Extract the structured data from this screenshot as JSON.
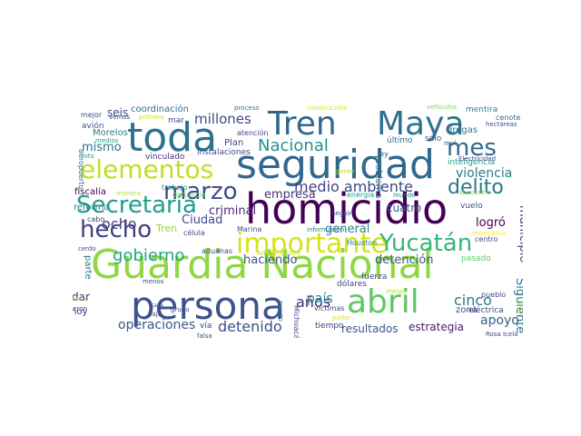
{
  "words": [
    {
      "text": "Guardia Nacional",
      "color": "#8fd744"
    },
    {
      "text": "persona",
      "color": "#3b528b"
    },
    {
      "text": "homicidio",
      "color": "#440154"
    },
    {
      "text": "seguridad",
      "color": "#31688e"
    },
    {
      "text": "Tren",
      "color": "#31688e"
    },
    {
      "text": "Maya",
      "color": "#2c728e"
    },
    {
      "text": "toda",
      "color": "#2c728e"
    },
    {
      "text": "abril",
      "color": "#5ec962"
    },
    {
      "text": "importante",
      "color": "#d8e219"
    },
    {
      "text": "elementos",
      "color": "#c2df23"
    },
    {
      "text": "Secretaría",
      "color": "#1f9e89"
    },
    {
      "text": "marzo",
      "color": "#3e4989"
    },
    {
      "text": "hecho",
      "color": "#433e85"
    },
    {
      "text": "Yucatán",
      "color": "#35b779"
    },
    {
      "text": "mes",
      "color": "#31688e"
    },
    {
      "text": "delito",
      "color": "#2a788e"
    },
    {
      "text": "Nacional",
      "color": "#21918c"
    },
    {
      "text": "millones",
      "color": "#3e4989"
    },
    {
      "text": "medio ambiente",
      "color": "#404688"
    },
    {
      "text": "gobierno",
      "color": "#20a486"
    },
    {
      "text": "ocho",
      "color": "#414487"
    },
    {
      "text": "operaciones",
      "color": "#38598c"
    },
    {
      "text": "detenido",
      "color": "#3b528b"
    },
    {
      "text": "apoyo",
      "color": "#34618d"
    },
    {
      "text": "años",
      "color": "#482677"
    },
    {
      "text": "país",
      "color": "#26828e"
    },
    {
      "text": "cinco",
      "color": "#2a788e"
    },
    {
      "text": "Siguiente",
      "color": "#2c728e"
    },
    {
      "text": "municipio",
      "color": "#3e4989"
    },
    {
      "text": "violencia",
      "color": "#287c8e"
    },
    {
      "text": "mismo",
      "color": "#2c728e"
    },
    {
      "text": "criminal",
      "color": "#482677"
    },
    {
      "text": "empresa",
      "color": "#46337e"
    },
    {
      "text": "haciendo",
      "color": "#3b528b"
    },
    {
      "text": "detención",
      "color": "#3b528b"
    },
    {
      "text": "resultados",
      "color": "#3b528b"
    },
    {
      "text": "estrategia",
      "color": "#481a6c"
    },
    {
      "text": "general",
      "color": "#26828e"
    },
    {
      "text": "cuatro",
      "color": "#38598c"
    },
    {
      "text": "logró",
      "color": "#440154"
    },
    {
      "text": "Ciudad",
      "color": "#3e4989"
    },
    {
      "text": "problema",
      "color": "#2c728e"
    },
    {
      "text": "seis",
      "color": "#3e4989"
    },
    {
      "text": "coordinación",
      "color": "#2c728e"
    },
    {
      "text": "reforma",
      "color": "#26828e"
    },
    {
      "text": "fiscalía",
      "color": "#440154"
    },
    {
      "text": "dar",
      "color": "#46337e"
    },
    {
      "text": "hoy",
      "color": "#482878"
    },
    {
      "text": "parte",
      "color": "#2a788e"
    },
    {
      "text": "Morelos",
      "color": "#2a788e"
    },
    {
      "text": "drogas",
      "color": "#2a788e"
    },
    {
      "text": "inteligencia",
      "color": "#1f9e89"
    },
    {
      "text": "mentira",
      "color": "#26828e"
    },
    {
      "text": "cenote",
      "color": "#31688e"
    },
    {
      "text": "vehículos",
      "color": "#7ad151"
    },
    {
      "text": "construcción",
      "color": "#dce319"
    },
    {
      "text": "proceso",
      "color": "#2a788e"
    },
    {
      "text": "aeropuerto",
      "color": "#31688e"
    },
    {
      "text": "mejor",
      "color": "#3e4989"
    },
    {
      "text": "avión",
      "color": "#3b528b"
    },
    {
      "text": "vemos",
      "color": "#404688"
    },
    {
      "text": "primera",
      "color": "#c0df25"
    },
    {
      "text": "mar",
      "color": "#3e4989"
    },
    {
      "text": "atención",
      "color": "#3e4989"
    },
    {
      "text": "Plan",
      "color": "#3e4989"
    },
    {
      "text": "instalaciones",
      "color": "#3e4989"
    },
    {
      "text": "vinculado",
      "color": "#46337e"
    },
    {
      "text": "trabajo",
      "color": "#1f9e89"
    },
    {
      "text": "denuncia",
      "color": "#6ccd5a"
    },
    {
      "text": "energía",
      "color": "#1f9e89"
    },
    {
      "text": "mundo",
      "color": "#26828e"
    },
    {
      "text": "gente",
      "color": "#c2df23"
    },
    {
      "text": "último",
      "color": "#2a788e"
    },
    {
      "text": "sólo",
      "color": "#38598c"
    },
    {
      "text": "ley",
      "color": "#3b528b"
    },
    {
      "text": "mal",
      "color": "#3b528b"
    },
    {
      "text": "Electricidad",
      "color": "#3e4989"
    },
    {
      "text": "hectáreas",
      "color": "#3e4989"
    },
    {
      "text": "secuestro",
      "color": "#7ad151"
    },
    {
      "text": "vuelo",
      "color": "#3b528b"
    },
    {
      "text": "centro",
      "color": "#3b528b"
    },
    {
      "text": "mexicanos",
      "color": "#fde725"
    },
    {
      "text": "pasado",
      "color": "#5ec962"
    },
    {
      "text": "Marina",
      "color": "#3b528b"
    },
    {
      "text": "información",
      "color": "#26828e"
    },
    {
      "text": "Antisecuestro",
      "color": "#b5de2b"
    },
    {
      "text": "aduanas",
      "color": "#3e4989"
    },
    {
      "text": "célula",
      "color": "#3e4989"
    },
    {
      "text": "cerdo",
      "color": "#3e4989"
    },
    {
      "text": "cabo",
      "color": "#3e4989"
    },
    {
      "text": "manera",
      "color": "#b5de2b"
    },
    {
      "text": "foto",
      "color": "#1f9e89"
    },
    {
      "text": "medios",
      "color": "#20a486"
    },
    {
      "text": "Houston",
      "color": "#2a788e"
    },
    {
      "text": "seguir",
      "color": "#3b528b"
    },
    {
      "text": "fuerza",
      "color": "#3e4989"
    },
    {
      "text": "puerto",
      "color": "#2a788e"
    },
    {
      "text": "Michoacán",
      "color": "#3e4989"
    },
    {
      "text": "dólares",
      "color": "#3e4989"
    },
    {
      "text": "víctimas",
      "color": "#3e4989"
    },
    {
      "text": "poder",
      "color": "#dce319"
    },
    {
      "text": "tiempo",
      "color": "#46337e"
    },
    {
      "text": "meses",
      "color": "#b5de2b"
    },
    {
      "text": "pueblo",
      "color": "#3e4989"
    },
    {
      "text": "zona",
      "color": "#3e4989"
    },
    {
      "text": "eléctrica",
      "color": "#3e4989"
    },
    {
      "text": "José",
      "color": "#b5de2b"
    },
    {
      "text": "Rosa Icela",
      "color": "#3e4989"
    },
    {
      "text": "grupo",
      "color": "#3e4989"
    },
    {
      "text": "hicieron",
      "color": "#3e4989"
    },
    {
      "text": "baja",
      "color": "#3e4989"
    },
    {
      "text": "falsa",
      "color": "#3e4989"
    },
    {
      "text": "vía",
      "color": "#3e4989"
    },
    {
      "text": "primero",
      "color": "#b5de2b"
    },
    {
      "text": "menos",
      "color": "#3e4989"
    },
    {
      "text": "casa",
      "color": "#3e4989"
    },
    {
      "text": "Tren",
      "color": "#8fd744"
    }
  ]
}
